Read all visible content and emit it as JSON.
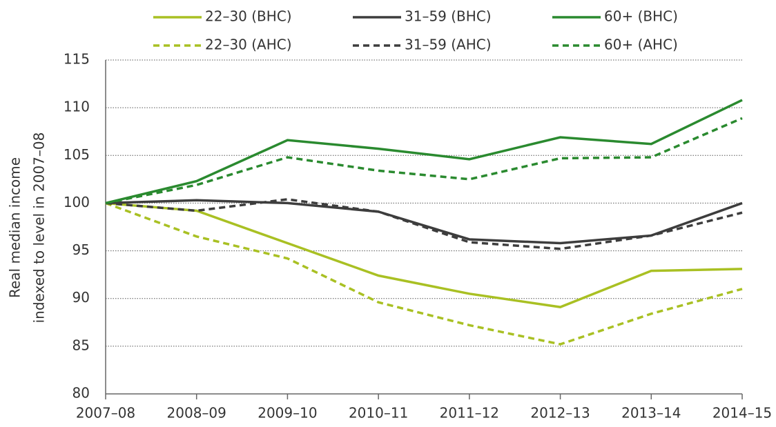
{
  "chart_data": {
    "type": "line",
    "ylabel": [
      "Real median income",
      "indexed to level in 2007–08"
    ],
    "categories": [
      "2007–08",
      "2008–09",
      "2009–10",
      "2010–11",
      "2011–12",
      "2012–13",
      "2013–14",
      "2014–15"
    ],
    "series": [
      {
        "name": "22–30 (BHC)",
        "color": "#a9c023",
        "dashed": false,
        "values": [
          100,
          99.2,
          95.8,
          92.4,
          90.5,
          89.1,
          92.9,
          93.1
        ]
      },
      {
        "name": "31–59 (BHC)",
        "color": "#3d3d3d",
        "dashed": false,
        "values": [
          100,
          100.3,
          100,
          99.1,
          96.2,
          95.8,
          96.6,
          100
        ]
      },
      {
        "name": "60+ (BHC)",
        "color": "#2a8a2f",
        "dashed": false,
        "values": [
          100,
          102.3,
          106.6,
          105.7,
          104.6,
          106.9,
          106.2,
          110.8
        ]
      },
      {
        "name": "22–30 (AHC)",
        "color": "#a9c023",
        "dashed": true,
        "values": [
          100,
          96.5,
          94.2,
          89.6,
          87.2,
          85.2,
          88.4,
          91
        ]
      },
      {
        "name": "31–59 (AHC)",
        "color": "#3d3d3d",
        "dashed": true,
        "values": [
          100,
          99.2,
          100.4,
          99.1,
          95.9,
          95.2,
          96.6,
          99
        ]
      },
      {
        "name": "60+ (AHC)",
        "color": "#2a8a2f",
        "dashed": true,
        "values": [
          100,
          101.9,
          104.8,
          103.4,
          102.5,
          104.7,
          104.8,
          108.9
        ]
      }
    ],
    "ylim": [
      80,
      115
    ],
    "yticks": [
      80,
      85,
      90,
      95,
      100,
      105,
      110,
      115
    ],
    "grid": true
  }
}
